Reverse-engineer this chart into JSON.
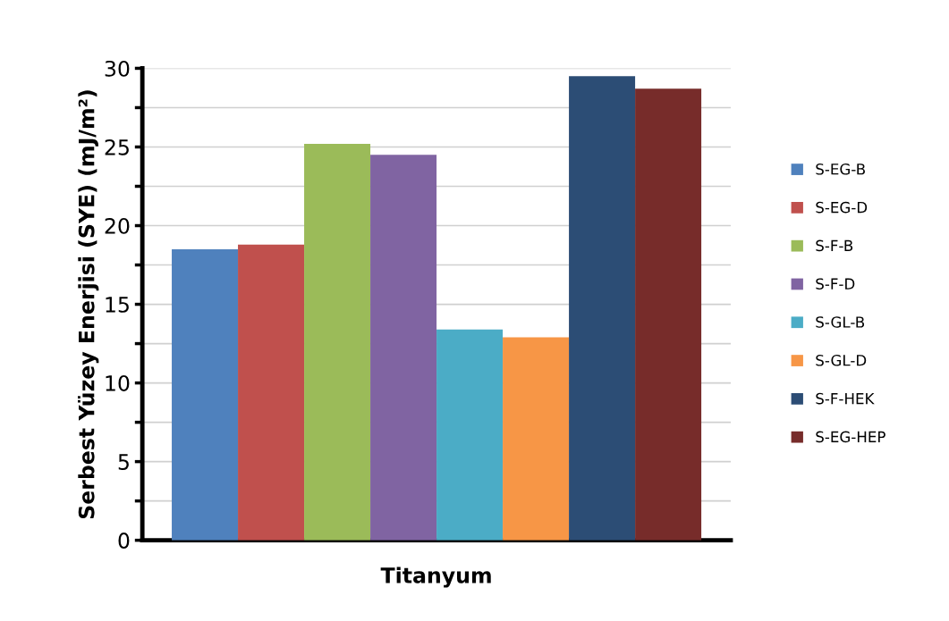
{
  "chart_data": {
    "type": "bar",
    "xlabel": "Titanyum",
    "ylabel": "Serbest Yüzey Enerjisi (SYE) (mJ/m²)",
    "categories": [
      null
    ],
    "series": [
      {
        "name": "S-EG-B",
        "color": "#4f81bd",
        "values": [
          18.5
        ]
      },
      {
        "name": "S-EG-D",
        "color": "#c0504d",
        "values": [
          18.8
        ]
      },
      {
        "name": "S-F-B",
        "color": "#9bbb59",
        "values": [
          25.2
        ]
      },
      {
        "name": "S-F-D",
        "color": "#8064a2",
        "values": [
          24.5
        ]
      },
      {
        "name": "S-GL-B",
        "color": "#4bacc6",
        "values": [
          13.4
        ]
      },
      {
        "name": "S-GL-D",
        "color": "#f79646",
        "values": [
          12.9
        ]
      },
      {
        "name": "S-F-HEK",
        "color": "#2c4d75",
        "values": [
          29.5
        ]
      },
      {
        "name": "S-EG-HEP",
        "color": "#772c2a",
        "values": [
          28.7
        ]
      }
    ],
    "ylim": [
      0,
      30
    ],
    "yticks": [
      0,
      {
        "value": 2.5,
        "label": null
      },
      5,
      {
        "value": 7.5,
        "label": null
      },
      10,
      {
        "value": 12.5,
        "label": null
      },
      15,
      {
        "value": 17.5,
        "label": null
      },
      20,
      {
        "value": 22.5,
        "label": null
      },
      25,
      {
        "value": 27.5,
        "label": null
      },
      30
    ],
    "grid": "y",
    "legend": "right"
  }
}
